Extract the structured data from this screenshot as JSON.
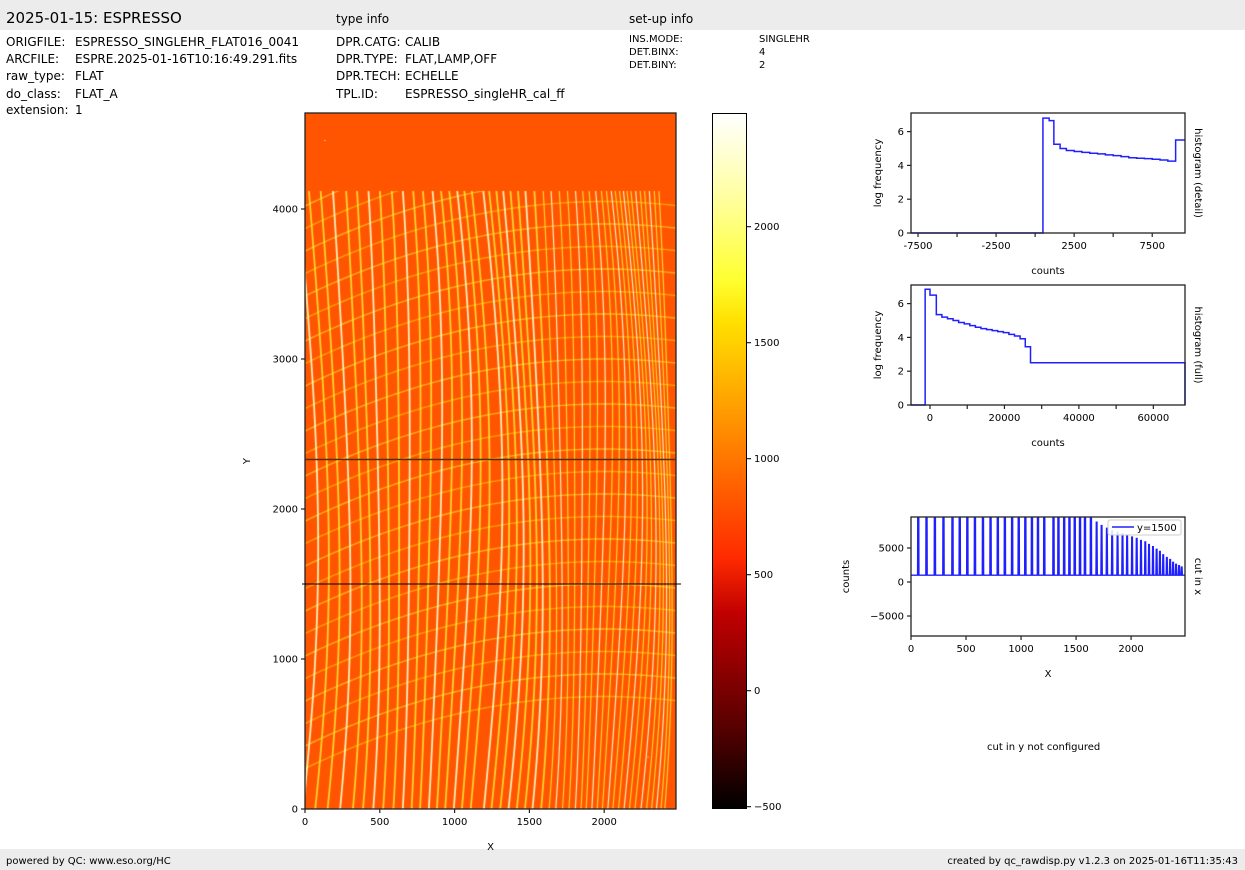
{
  "header": {
    "title": "2025-01-15: ESPRESSO",
    "type_info_heading": "type info",
    "setup_info_heading": "set-up info"
  },
  "file_info": [
    {
      "key": "ORIGFILE:",
      "value": "ESPRESSO_SINGLEHR_FLAT016_0041"
    },
    {
      "key": "ARCFILE:",
      "value": "ESPRE.2025-01-16T10:16:49.291.fits"
    },
    {
      "key": "raw_type:",
      "value": "FLAT"
    },
    {
      "key": "do_class:",
      "value": "FLAT_A"
    },
    {
      "key": "extension:",
      "value": "1"
    }
  ],
  "type_info": [
    {
      "key": "DPR.CATG:",
      "value": "CALIB"
    },
    {
      "key": "DPR.TYPE:",
      "value": "FLAT,LAMP,OFF"
    },
    {
      "key": "DPR.TECH:",
      "value": "ECHELLE"
    },
    {
      "key": "TPL.ID:",
      "value": "ESPRESSO_singleHR_cal_ff"
    }
  ],
  "setup_info": [
    {
      "key": "INS.MODE:",
      "value": "SINGLEHR"
    },
    {
      "key": "DET.BINX:",
      "value": "4"
    },
    {
      "key": "DET.BINY:",
      "value": "2"
    }
  ],
  "footer": {
    "left": "powered by QC: www.eso.org/HC",
    "right": "created by qc_rawdisp.py v1.2.3 on 2025-01-16T11:35:43"
  },
  "cut_y_message": "cut in y not configured",
  "chart_data": [
    {
      "type": "heatmap",
      "xlabel": "X",
      "ylabel": "Y",
      "xlim": [
        0,
        2480
      ],
      "ylim": [
        0,
        4640
      ],
      "xticks": [
        0,
        500,
        1000,
        1500,
        2000
      ],
      "yticks": [
        0,
        1000,
        2000,
        3000,
        4000
      ],
      "colormap": "hot",
      "colorbar": {
        "range": [
          -510,
          2490
        ],
        "ticks": [
          -500,
          0,
          500,
          1000,
          1500,
          2000
        ]
      },
      "background_color": "#ff5500",
      "marked_rows": [
        1500,
        2330
      ]
    },
    {
      "type": "line",
      "style": "step",
      "xlabel": "counts",
      "ylabel": "log frequency",
      "side_label": "histogram (detail)",
      "xlim": [
        -7950,
        9600
      ],
      "ylim": [
        0,
        7.1
      ],
      "xticks": [
        -7500,
        -5000,
        -2500,
        0,
        2500,
        5000,
        7500
      ],
      "xticklabels": [
        "-7500",
        "",
        "-2500",
        "",
        "2500",
        "",
        "7500"
      ],
      "yticks": [
        0,
        2,
        4,
        6
      ],
      "color": "#2020ff",
      "edges": [
        -7950,
        500,
        900,
        1200,
        1600,
        2000,
        2500,
        3000,
        3500,
        4000,
        4500,
        5000,
        5500,
        6000,
        6500,
        7000,
        7500,
        8000,
        8500,
        9000,
        9600
      ],
      "values": [
        0,
        6.8,
        6.65,
        5.25,
        5.0,
        4.88,
        4.82,
        4.77,
        4.72,
        4.68,
        4.62,
        4.58,
        4.52,
        4.45,
        4.42,
        4.4,
        4.36,
        4.32,
        4.25,
        5.5
      ]
    },
    {
      "type": "line",
      "style": "step",
      "xlabel": "counts",
      "ylabel": "log frequency",
      "side_label": "histogram (full)",
      "xlim": [
        -5100,
        68500
      ],
      "ylim": [
        0,
        7.1
      ],
      "xticks": [
        0,
        10000,
        20000,
        30000,
        40000,
        50000,
        60000
      ],
      "xticklabels": [
        "0",
        "",
        "20000",
        "",
        "40000",
        "",
        "60000"
      ],
      "yticks": [
        0,
        2,
        4,
        6
      ],
      "color": "#2020ff",
      "edges": [
        -5100,
        -1300,
        0,
        1700,
        3200,
        4700,
        6200,
        7700,
        9200,
        10700,
        12200,
        13700,
        15200,
        16700,
        18200,
        19700,
        21200,
        22700,
        24200,
        25600,
        27000,
        68500
      ],
      "values": [
        0,
        6.85,
        6.5,
        5.35,
        5.2,
        5.1,
        5.0,
        4.88,
        4.8,
        4.7,
        4.6,
        4.52,
        4.46,
        4.4,
        4.34,
        4.28,
        4.18,
        4.08,
        3.92,
        3.45,
        2.5,
        0
      ]
    },
    {
      "type": "line",
      "xlabel": "X",
      "ylabel": "counts",
      "side_label": "cut in x",
      "xlim": [
        0,
        2490
      ],
      "ylim": [
        -7940,
        9560
      ],
      "xticks": [
        0,
        500,
        1000,
        1500,
        2000
      ],
      "yticks": [
        -5000,
        0,
        5000
      ],
      "yticklabels": [
        "−5000",
        "0",
        "5000"
      ],
      "color": "#2020ff",
      "legend": {
        "label": "y=1500",
        "position": "upper right"
      },
      "baseline": 1000,
      "peaks_x": [
        66,
        141,
        217,
        295,
        377,
        443,
        512,
        581,
        654,
        723,
        789,
        853,
        919,
        979,
        1039,
        1099,
        1154,
        1211,
        1295,
        1340,
        1392,
        1440,
        1488,
        1536,
        1581,
        1635,
        1687,
        1732,
        1780,
        1828,
        1877,
        1922,
        1964,
        2009,
        2051,
        2090,
        2129,
        2163,
        2199,
        2232,
        2262,
        2292,
        2325,
        2355,
        2382,
        2409,
        2436,
        2460
      ],
      "peaks_y": [
        20000,
        20000,
        20000,
        20000,
        20000,
        20000,
        20000,
        20000,
        20000,
        20000,
        20000,
        20000,
        20000,
        20000,
        20000,
        20000,
        20000,
        20000,
        20000,
        20000,
        20000,
        20000,
        20000,
        20000,
        20000,
        20000,
        8800,
        8300,
        7900,
        7500,
        7300,
        7100,
        6900,
        6600,
        6400,
        6100,
        5900,
        5500,
        5200,
        4800,
        4500,
        4000,
        3600,
        3300,
        2900,
        2600,
        2400,
        2200
      ]
    }
  ]
}
